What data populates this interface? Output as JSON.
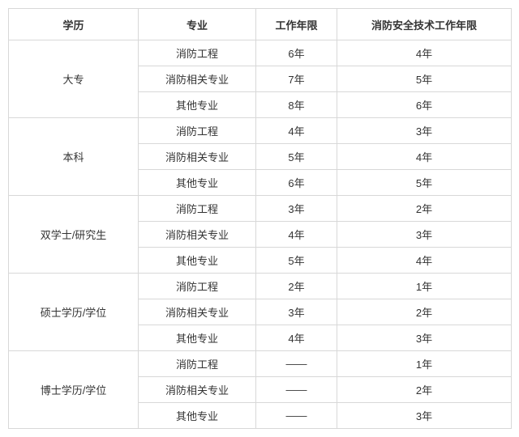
{
  "headers": {
    "education": "学历",
    "major": "专业",
    "work_years": "工作年限",
    "fire_years": "消防安全技术工作年限"
  },
  "majors": {
    "fire_eng": "消防工程",
    "fire_rel": "消防相关专业",
    "other": "其他专业"
  },
  "groups": [
    {
      "education": "大专",
      "rows": [
        {
          "work": "6年",
          "fire": "4年"
        },
        {
          "work": "7年",
          "fire": "5年"
        },
        {
          "work": "8年",
          "fire": "6年"
        }
      ]
    },
    {
      "education": "本科",
      "rows": [
        {
          "work": "4年",
          "fire": "3年"
        },
        {
          "work": "5年",
          "fire": "4年"
        },
        {
          "work": "6年",
          "fire": "5年"
        }
      ]
    },
    {
      "education": "双学士/研究生",
      "rows": [
        {
          "work": "3年",
          "fire": "2年"
        },
        {
          "work": "4年",
          "fire": "3年"
        },
        {
          "work": "5年",
          "fire": "4年"
        }
      ]
    },
    {
      "education": "硕士学历/学位",
      "rows": [
        {
          "work": "2年",
          "fire": "1年"
        },
        {
          "work": "3年",
          "fire": "2年"
        },
        {
          "work": "4年",
          "fire": "3年"
        }
      ]
    },
    {
      "education": "博士学历/学位",
      "rows": [
        {
          "work": "——",
          "fire": "1年"
        },
        {
          "work": "——",
          "fire": "2年"
        },
        {
          "work": "——",
          "fire": "3年"
        }
      ]
    }
  ]
}
